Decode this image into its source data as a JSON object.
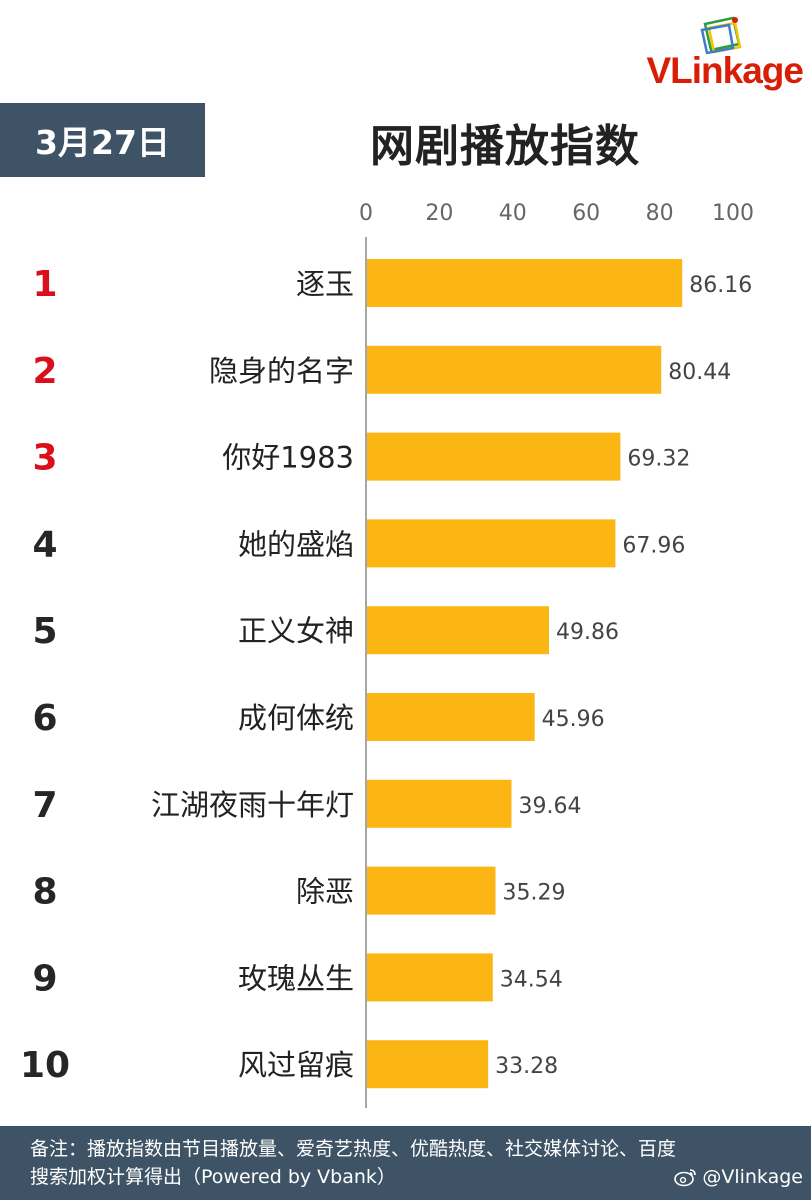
{
  "logo": {
    "text_a": "VLin",
    "text_b": "k",
    "text_c": "age",
    "colors": {
      "red": "#d81e06",
      "green": "#2a9d3f",
      "yellow": "#f5c400"
    }
  },
  "date": "3月27日",
  "title": "网剧播放指数",
  "chart_data": {
    "type": "bar",
    "orientation": "horizontal",
    "title": "网剧播放指数",
    "categories": [
      "逐玉",
      "隐身的名字",
      "你好1983",
      "她的盛焰",
      "正义女神",
      "成何体统",
      "江湖夜雨十年灯",
      "除恶",
      "玫瑰丛生",
      "风过留痕"
    ],
    "ranks": [
      "1",
      "2",
      "3",
      "4",
      "5",
      "6",
      "7",
      "8",
      "9",
      "10"
    ],
    "values": [
      86.16,
      80.44,
      69.32,
      67.96,
      49.86,
      45.96,
      39.64,
      35.29,
      34.54,
      33.28
    ],
    "value_labels": [
      "86.16",
      "80.44",
      "69.32",
      "67.96",
      "49.86",
      "45.96",
      "39.64",
      "35.29",
      "34.54",
      "33.28"
    ],
    "xlim": [
      0,
      100
    ],
    "xticks": [
      "0",
      "20",
      "40",
      "60",
      "80",
      "100"
    ],
    "xtick_values": [
      0,
      20,
      40,
      60,
      80,
      100
    ],
    "xaxis_position": "top",
    "grid": false,
    "legend": "none",
    "bar_color": "#fbb613",
    "top_rank_color": "#d9101c",
    "rank_color": "#262626"
  },
  "footer": {
    "note": "备注：播放指数由节目播放量、爱奇艺热度、优酷热度、社交媒体讨论、百度搜索加权计算得出（Powered by Vbank）",
    "credit": "@Vlinkage"
  },
  "colors": {
    "header_bg": "#3e5366"
  }
}
